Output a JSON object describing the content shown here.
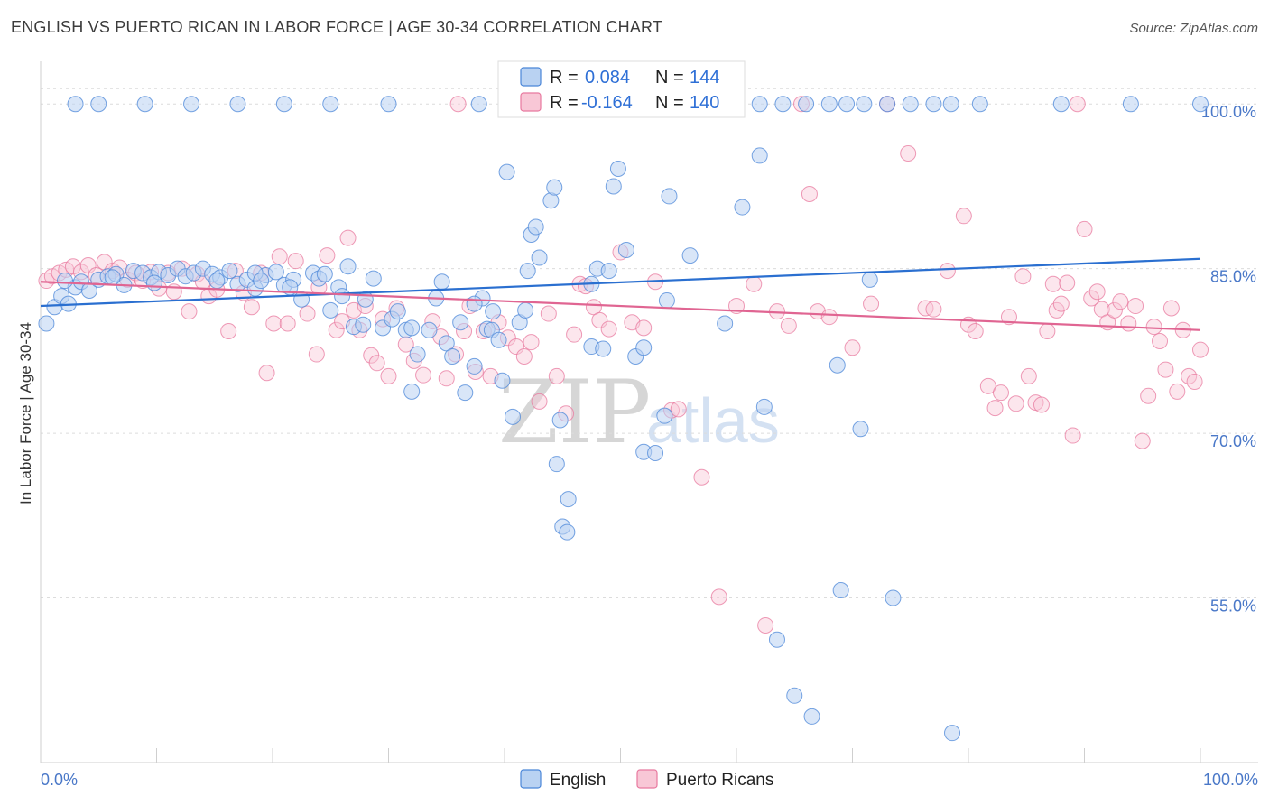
{
  "title": "ENGLISH VS PUERTO RICAN IN LABOR FORCE | AGE 30-34 CORRELATION CHART",
  "source": "Source: ZipAtlas.com",
  "watermark": {
    "zip": "ZIP",
    "atlas": "atlas"
  },
  "legend_top": {
    "rows": [
      {
        "r_label": "R =",
        "r_value": "0.084",
        "n_label": "N =",
        "n_value": "144"
      },
      {
        "r_label": "R =",
        "r_value": "-0.164",
        "n_label": "N =",
        "n_value": "140"
      }
    ]
  },
  "chart_data": {
    "type": "scatter",
    "title": "ENGLISH VS PUERTO RICAN IN LABOR FORCE | AGE 30-34 CORRELATION CHART",
    "xlabel": "",
    "ylabel": "In Labor Force | Age 30-34",
    "xlim": [
      0,
      100
    ],
    "ylim": [
      40,
      101.5
    ],
    "x_tick_labels": [
      "0.0%",
      "100.0%"
    ],
    "y_tick_labels": [
      "55.0%",
      "70.0%",
      "85.0%",
      "100.0%"
    ],
    "y_ticks": [
      55,
      70,
      85,
      100
    ],
    "grid": true,
    "legend_position": "top-center and bottom",
    "colors": {
      "english": "#4a86d8",
      "puerto_ricans": "#e8799f"
    },
    "series": [
      {
        "name": "English",
        "color": "#4a86d8",
        "trend": {
          "x": [
            0,
            100
          ],
          "y": [
            81.6,
            85.9
          ]
        },
        "points": [
          [
            0.5,
            80
          ],
          [
            1.2,
            81.5
          ],
          [
            1.8,
            82.5
          ],
          [
            2.4,
            81.8
          ],
          [
            3,
            83.3
          ],
          [
            3.5,
            83.8
          ],
          [
            4.2,
            83
          ],
          [
            5,
            84
          ],
          [
            5.8,
            84.3
          ],
          [
            6.5,
            84.5
          ],
          [
            7.2,
            83.5
          ],
          [
            8,
            84.8
          ],
          [
            8.8,
            84.6
          ],
          [
            9.5,
            84.2
          ],
          [
            10.2,
            84.7
          ],
          [
            11,
            84.4
          ],
          [
            11.8,
            85
          ],
          [
            12.5,
            84.3
          ],
          [
            13.2,
            84.6
          ],
          [
            14,
            85
          ],
          [
            14.8,
            84.5
          ],
          [
            15.5,
            84.2
          ],
          [
            16.3,
            84.8
          ],
          [
            17,
            83.6
          ],
          [
            17.8,
            84
          ],
          [
            18.5,
            83.2
          ],
          [
            19.4,
            84.4
          ],
          [
            20.3,
            84.7
          ],
          [
            21,
            83.5
          ],
          [
            21.8,
            84
          ],
          [
            22.5,
            82.2
          ],
          [
            23.5,
            84.6
          ],
          [
            24,
            84.1
          ],
          [
            25,
            81.2
          ],
          [
            25.7,
            83.3
          ],
          [
            26.5,
            85.2
          ],
          [
            27,
            79.7
          ],
          [
            28,
            82.2
          ],
          [
            28.7,
            84.1
          ],
          [
            29.5,
            79.6
          ],
          [
            30.3,
            80.4
          ],
          [
            30.8,
            81.1
          ],
          [
            31.5,
            79.4
          ],
          [
            32,
            79.6
          ],
          [
            32.5,
            77.2
          ],
          [
            32,
            73.8
          ],
          [
            33.5,
            79.4
          ],
          [
            34.1,
            82.3
          ],
          [
            34.6,
            83.8
          ],
          [
            35,
            78.2
          ],
          [
            35.5,
            77
          ],
          [
            36.2,
            80.1
          ],
          [
            36.6,
            73.7
          ],
          [
            37.4,
            76.1
          ],
          [
            38.1,
            82.3
          ],
          [
            37.4,
            81.8
          ],
          [
            38.5,
            79.5
          ],
          [
            39,
            81.1
          ],
          [
            38.9,
            79.4
          ],
          [
            39.5,
            78.5
          ],
          [
            39.8,
            74.8
          ],
          [
            40.2,
            93.8
          ],
          [
            40.7,
            71.5
          ],
          [
            41.3,
            80.1
          ],
          [
            41.8,
            81.2
          ],
          [
            42,
            84.8
          ],
          [
            42.3,
            88.1
          ],
          [
            42.7,
            88.8
          ],
          [
            43,
            86
          ],
          [
            44,
            91.2
          ],
          [
            44.3,
            92.4
          ],
          [
            44.8,
            71.2
          ],
          [
            44.5,
            67.2
          ],
          [
            45.5,
            64
          ],
          [
            45,
            61.5
          ],
          [
            45.4,
            61
          ],
          [
            47.5,
            77.9
          ],
          [
            47.5,
            83.6
          ],
          [
            48,
            85
          ],
          [
            48.5,
            77.7
          ],
          [
            49,
            84.8
          ],
          [
            49.4,
            92.5
          ],
          [
            49.8,
            94.1
          ],
          [
            50.5,
            86.7
          ],
          [
            51.3,
            77
          ],
          [
            52,
            77.8
          ],
          [
            52,
            68.3
          ],
          [
            53,
            68.2
          ],
          [
            53.8,
            71.6
          ],
          [
            54,
            82.1
          ],
          [
            54.2,
            91.6
          ],
          [
            56,
            86.2
          ],
          [
            59,
            80
          ],
          [
            60.5,
            90.6
          ],
          [
            62,
            95.3
          ],
          [
            62.4,
            72.4
          ],
          [
            63.5,
            51.2
          ],
          [
            65,
            46.1
          ],
          [
            66.5,
            44.2
          ],
          [
            68.7,
            76.2
          ],
          [
            69,
            55.7
          ],
          [
            70.7,
            70.4
          ],
          [
            71.5,
            84
          ],
          [
            73.5,
            55
          ],
          [
            78.6,
            42.7
          ],
          [
            3,
            100
          ],
          [
            5,
            100
          ],
          [
            9,
            100
          ],
          [
            13,
            100
          ],
          [
            17,
            100
          ],
          [
            21,
            100
          ],
          [
            25,
            100
          ],
          [
            30,
            100
          ],
          [
            37.8,
            100
          ],
          [
            40.5,
            100
          ],
          [
            41.5,
            100
          ],
          [
            43.5,
            100
          ],
          [
            52.7,
            100
          ],
          [
            55,
            100
          ],
          [
            58.7,
            100
          ],
          [
            62,
            100
          ],
          [
            64,
            100
          ],
          [
            66,
            100
          ],
          [
            68,
            100
          ],
          [
            69.5,
            100
          ],
          [
            71,
            100
          ],
          [
            73,
            100
          ],
          [
            75,
            100
          ],
          [
            77,
            100
          ],
          [
            78.5,
            100
          ],
          [
            81,
            100
          ],
          [
            88,
            100
          ],
          [
            94,
            100
          ],
          [
            100,
            100
          ],
          [
            18.5,
            84.6
          ],
          [
            19,
            83.9
          ],
          [
            24.5,
            84.5
          ],
          [
            26,
            82.5
          ],
          [
            21.5,
            83.3
          ],
          [
            15.2,
            83.9
          ],
          [
            9.8,
            83.7
          ],
          [
            6.2,
            84.2
          ],
          [
            2.1,
            83.9
          ],
          [
            27.8,
            79.9
          ]
        ]
      },
      {
        "name": "Puerto Ricans",
        "color": "#e8799f",
        "trend": {
          "x": [
            0,
            100
          ],
          "y": [
            83.8,
            79.4
          ]
        },
        "points": [
          [
            0.5,
            83.9
          ],
          [
            1,
            84.3
          ],
          [
            1.6,
            84.6
          ],
          [
            2.2,
            84.9
          ],
          [
            2.8,
            85.2
          ],
          [
            3.5,
            84.7
          ],
          [
            4.1,
            85.3
          ],
          [
            4.8,
            84.4
          ],
          [
            5.5,
            85.6
          ],
          [
            6.2,
            84.8
          ],
          [
            6.8,
            85.1
          ],
          [
            7.5,
            84
          ],
          [
            8.2,
            84.6
          ],
          [
            8.8,
            83.9
          ],
          [
            9.5,
            84.7
          ],
          [
            10.2,
            83.2
          ],
          [
            11,
            84.6
          ],
          [
            11.5,
            82.9
          ],
          [
            12.2,
            85
          ],
          [
            12.8,
            81.1
          ],
          [
            13.5,
            84.5
          ],
          [
            14,
            83.8
          ],
          [
            14.5,
            82.5
          ],
          [
            15.2,
            83.1
          ],
          [
            16.2,
            79.3
          ],
          [
            16.8,
            84.8
          ],
          [
            17.5,
            82.8
          ],
          [
            18.2,
            81.5
          ],
          [
            19,
            84.6
          ],
          [
            19.5,
            75.5
          ],
          [
            20.1,
            80
          ],
          [
            20.6,
            86.1
          ],
          [
            21.3,
            80
          ],
          [
            22,
            85.7
          ],
          [
            23,
            80.9
          ],
          [
            23.8,
            77.2
          ],
          [
            24,
            83.3
          ],
          [
            24.7,
            86.2
          ],
          [
            25.5,
            79.4
          ],
          [
            26,
            80.2
          ],
          [
            26.5,
            87.8
          ],
          [
            27,
            81.2
          ],
          [
            27.5,
            79.4
          ],
          [
            28,
            81.6
          ],
          [
            28.5,
            77.1
          ],
          [
            29,
            76.4
          ],
          [
            29.5,
            80.4
          ],
          [
            30,
            75.2
          ],
          [
            30.7,
            81.4
          ],
          [
            31.5,
            78.1
          ],
          [
            32.2,
            76.6
          ],
          [
            33,
            75.3
          ],
          [
            33.8,
            80.2
          ],
          [
            34.5,
            78.8
          ],
          [
            35,
            75
          ],
          [
            35.8,
            77.2
          ],
          [
            36.5,
            79.3
          ],
          [
            37,
            81.6
          ],
          [
            37.5,
            75.6
          ],
          [
            38.2,
            79.3
          ],
          [
            38.8,
            75.2
          ],
          [
            39.5,
            80.1
          ],
          [
            40.3,
            78.7
          ],
          [
            41,
            77.9
          ],
          [
            41.7,
            77
          ],
          [
            42.3,
            78.3
          ],
          [
            43,
            72.9
          ],
          [
            43.8,
            80.9
          ],
          [
            44.5,
            75.2
          ],
          [
            45.3,
            71.8
          ],
          [
            46,
            79
          ],
          [
            46.5,
            83.6
          ],
          [
            47,
            83.4
          ],
          [
            47.7,
            81.5
          ],
          [
            48.2,
            80.3
          ],
          [
            49,
            79.5
          ],
          [
            50,
            86.5
          ],
          [
            51,
            80.1
          ],
          [
            52,
            79.6
          ],
          [
            53,
            83.8
          ],
          [
            54.4,
            72.1
          ],
          [
            55,
            72.2
          ],
          [
            57,
            66
          ],
          [
            58.5,
            55.1
          ],
          [
            60,
            81.6
          ],
          [
            61.5,
            83.6
          ],
          [
            62.5,
            52.5
          ],
          [
            63.5,
            81.1
          ],
          [
            64.5,
            79.8
          ],
          [
            65.6,
            100
          ],
          [
            66.3,
            91.8
          ],
          [
            67,
            81.1
          ],
          [
            68,
            80.6
          ],
          [
            70,
            77.8
          ],
          [
            71.6,
            81.8
          ],
          [
            73,
            100
          ],
          [
            74.8,
            95.5
          ],
          [
            76.3,
            81.4
          ],
          [
            77,
            81.3
          ],
          [
            78.2,
            84.8
          ],
          [
            79.6,
            89.8
          ],
          [
            80,
            79.9
          ],
          [
            80.6,
            79.3
          ],
          [
            81.7,
            74.3
          ],
          [
            82.3,
            72.3
          ],
          [
            82.8,
            73.7
          ],
          [
            83.5,
            80.6
          ],
          [
            84.1,
            72.7
          ],
          [
            84.7,
            84.3
          ],
          [
            85.2,
            75.2
          ],
          [
            85.8,
            72.8
          ],
          [
            86.3,
            72.6
          ],
          [
            86.8,
            79.3
          ],
          [
            87.3,
            83.6
          ],
          [
            87.6,
            81.2
          ],
          [
            88,
            81.8
          ],
          [
            88.5,
            83.7
          ],
          [
            89,
            69.8
          ],
          [
            89.4,
            100
          ],
          [
            90,
            88.6
          ],
          [
            90.6,
            82.3
          ],
          [
            91.1,
            82.9
          ],
          [
            91.5,
            81.3
          ],
          [
            92,
            80.1
          ],
          [
            92.6,
            81.2
          ],
          [
            93.1,
            82
          ],
          [
            93.8,
            80
          ],
          [
            94.4,
            81.6
          ],
          [
            95,
            69.3
          ],
          [
            95.5,
            73.4
          ],
          [
            96,
            79.7
          ],
          [
            96.5,
            78.4
          ],
          [
            97,
            75.8
          ],
          [
            97.5,
            81.4
          ],
          [
            98,
            73.8
          ],
          [
            98.5,
            79.4
          ],
          [
            99,
            75.2
          ],
          [
            99.5,
            74.7
          ],
          [
            100,
            77.6
          ],
          [
            36,
            100
          ]
        ]
      }
    ]
  }
}
